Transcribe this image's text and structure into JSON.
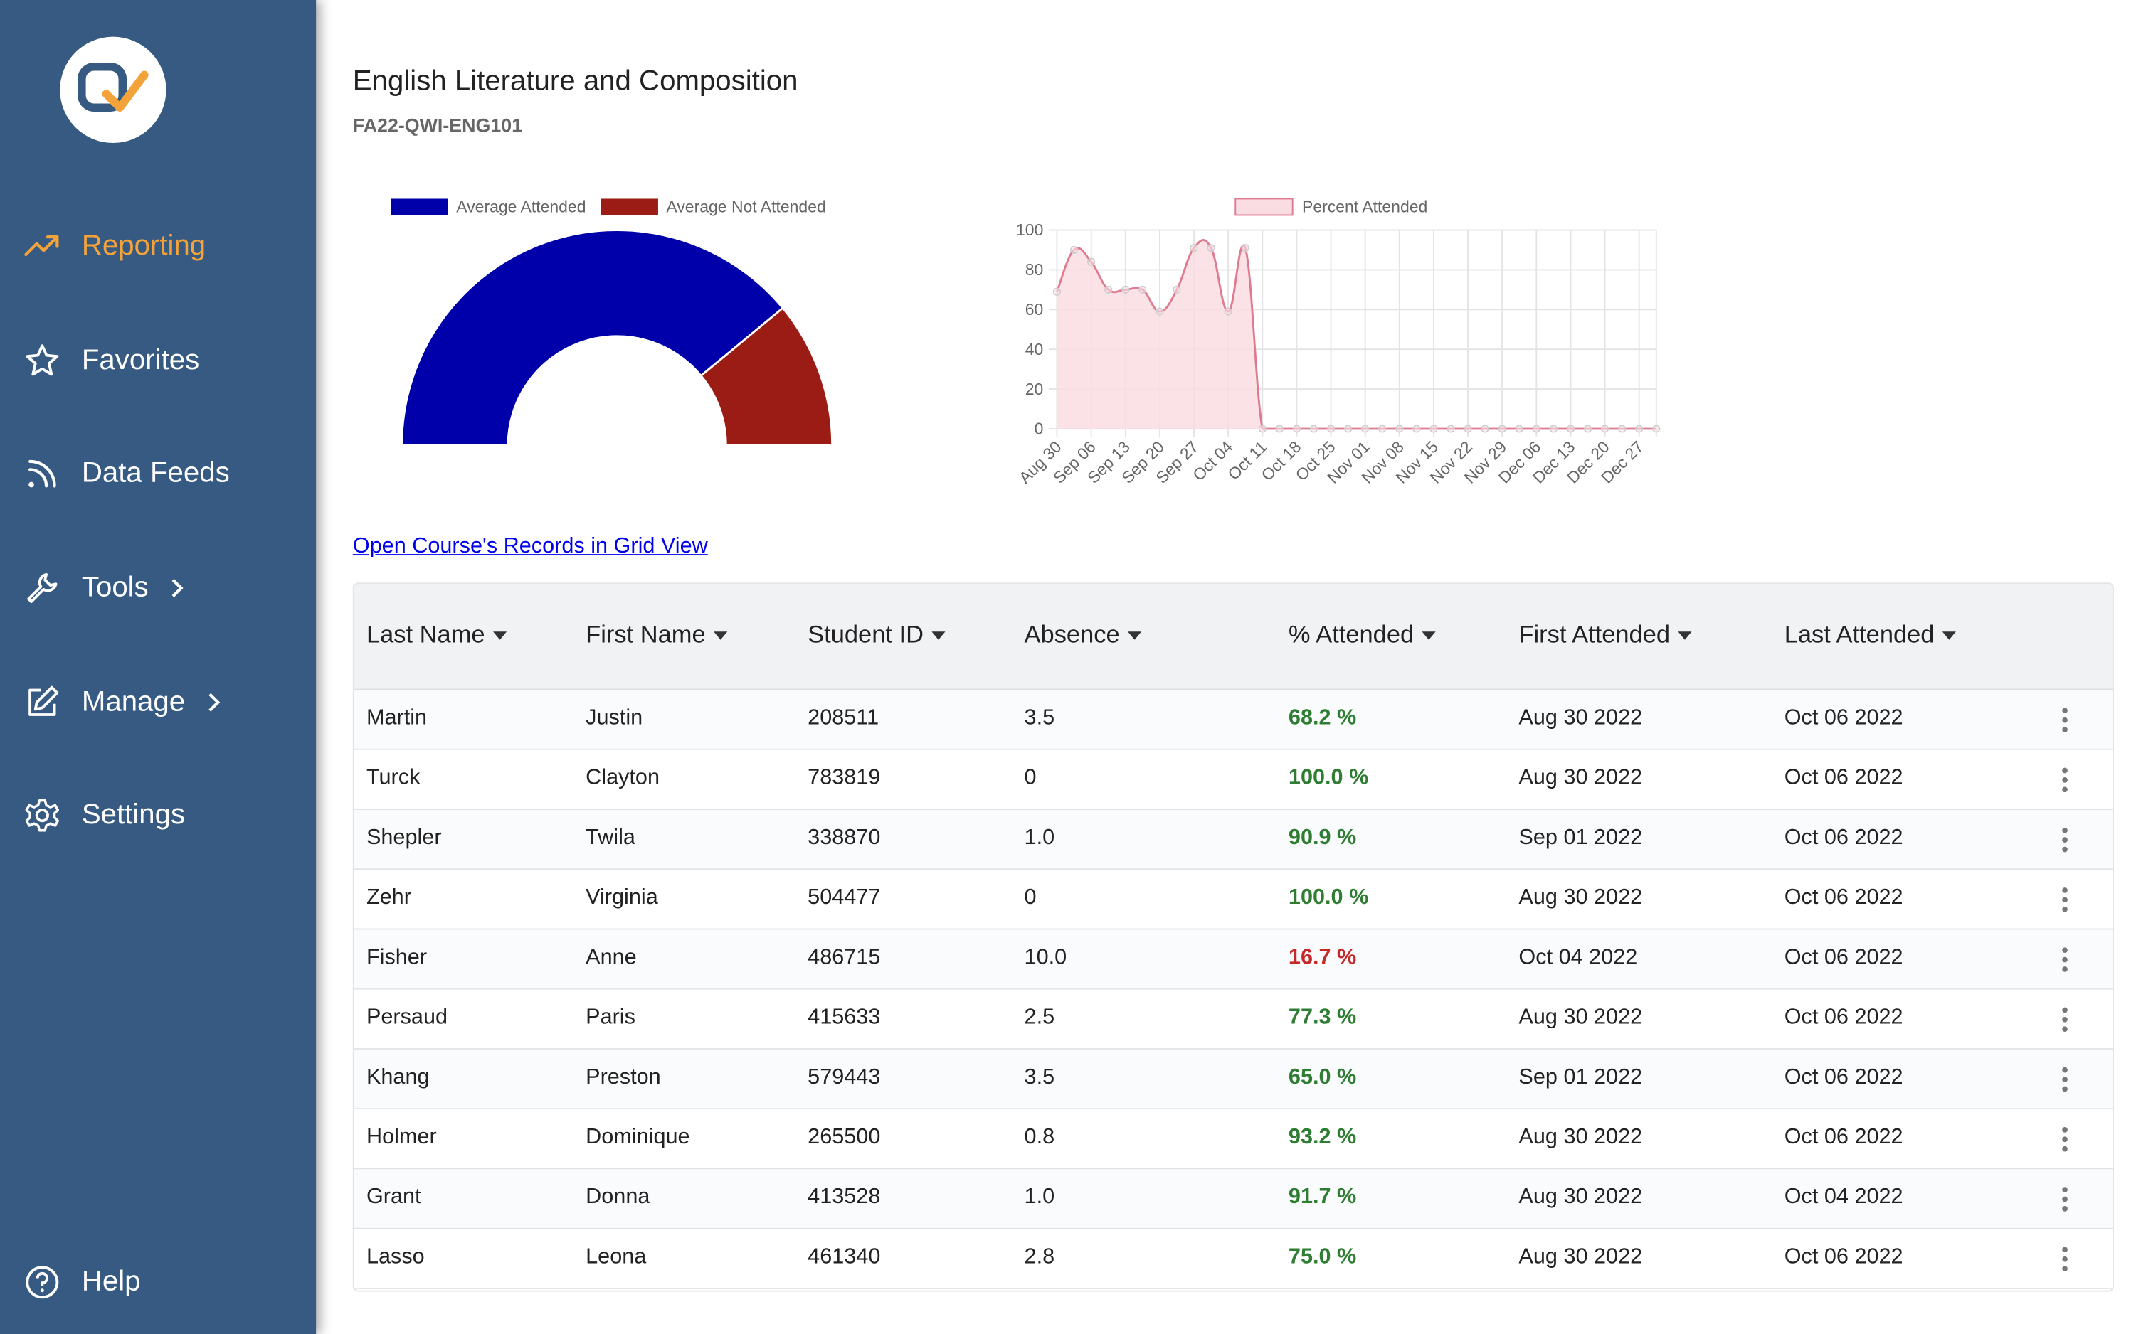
{
  "sidebar": {
    "nav": [
      "Reporting",
      "Favorites",
      "Data Feeds",
      "Tools",
      "Manage",
      "Settings"
    ],
    "help": "Help"
  },
  "header": {
    "title": "English Literature and Composition",
    "code": "FA22-QWI-ENG101"
  },
  "chart_data": [
    {
      "type": "doughnut",
      "categories": [
        "Average Attended",
        "Average Not Attended"
      ],
      "values": [
        78,
        22
      ],
      "colors": [
        "#0000aa",
        "#9b1c14"
      ]
    },
    {
      "type": "line",
      "categories": [
        "Aug 30",
        null,
        "Sep 06",
        null,
        "Sep 13",
        null,
        "Sep 20",
        null,
        "Sep 27",
        null,
        "Oct 04",
        null,
        "Oct 11",
        null,
        "Oct 18",
        null,
        "Oct 25",
        null,
        "Nov 01",
        null,
        "Nov 08",
        null,
        "Nov 15",
        null,
        "Nov 22",
        null,
        "Nov 29",
        null,
        "Dec 06",
        null,
        "Dec 13",
        null,
        "Dec 20",
        null,
        "Dec 27",
        null
      ],
      "series": [
        {
          "name": "Percent Attended",
          "color": "#e07b8f",
          "fill": "#fadde3",
          "values": [
            69,
            90,
            84,
            70,
            70,
            70,
            59,
            70,
            91,
            91,
            59,
            91,
            0,
            0,
            0,
            0,
            0,
            0,
            0,
            0,
            0,
            0,
            0,
            0,
            0,
            0,
            0,
            0,
            0,
            0,
            0,
            0,
            0,
            0,
            0,
            0
          ]
        }
      ],
      "ylim": [
        0,
        100
      ],
      "yticks": [
        0,
        20,
        40,
        60,
        80,
        100
      ],
      "grid": true
    }
  ],
  "link": "Open Course's Records in Grid View",
  "table": {
    "columns": [
      "Last Name",
      "First Name",
      "Student ID",
      "Absence",
      "% Attended",
      "First Attended",
      "Last Attended"
    ],
    "rows": [
      [
        "Martin",
        "Justin",
        "208511",
        "3.5",
        "68.2 %",
        "Aug 30 2022",
        "Oct 06 2022"
      ],
      [
        "Turck",
        "Clayton",
        "783819",
        "0",
        "100.0 %",
        "Aug 30 2022",
        "Oct 06 2022"
      ],
      [
        "Shepler",
        "Twila",
        "338870",
        "1.0",
        "90.9 %",
        "Sep 01 2022",
        "Oct 06 2022"
      ],
      [
        "Zehr",
        "Virginia",
        "504477",
        "0",
        "100.0 %",
        "Aug 30 2022",
        "Oct 06 2022"
      ],
      [
        "Fisher",
        "Anne",
        "486715",
        "10.0",
        "16.7 %",
        "Oct 04 2022",
        "Oct 06 2022"
      ],
      [
        "Persaud",
        "Paris",
        "415633",
        "2.5",
        "77.3 %",
        "Aug 30 2022",
        "Oct 06 2022"
      ],
      [
        "Khang",
        "Preston",
        "579443",
        "3.5",
        "65.0 %",
        "Sep 01 2022",
        "Oct 06 2022"
      ],
      [
        "Holmer",
        "Dominique",
        "265500",
        "0.8",
        "93.2 %",
        "Aug 30 2022",
        "Oct 06 2022"
      ],
      [
        "Grant",
        "Donna",
        "413528",
        "1.0",
        "91.7 %",
        "Aug 30 2022",
        "Oct 04 2022"
      ],
      [
        "Lasso",
        "Leona",
        "461340",
        "2.8",
        "75.0 %",
        "Aug 30 2022",
        "Oct 06 2022"
      ]
    ],
    "attended_colors": [
      "#2e7d32",
      "#2e7d32",
      "#2e7d32",
      "#2e7d32",
      "#c62828",
      "#2e7d32",
      "#2e7d32",
      "#2e7d32",
      "#2e7d32",
      "#2e7d32"
    ]
  }
}
